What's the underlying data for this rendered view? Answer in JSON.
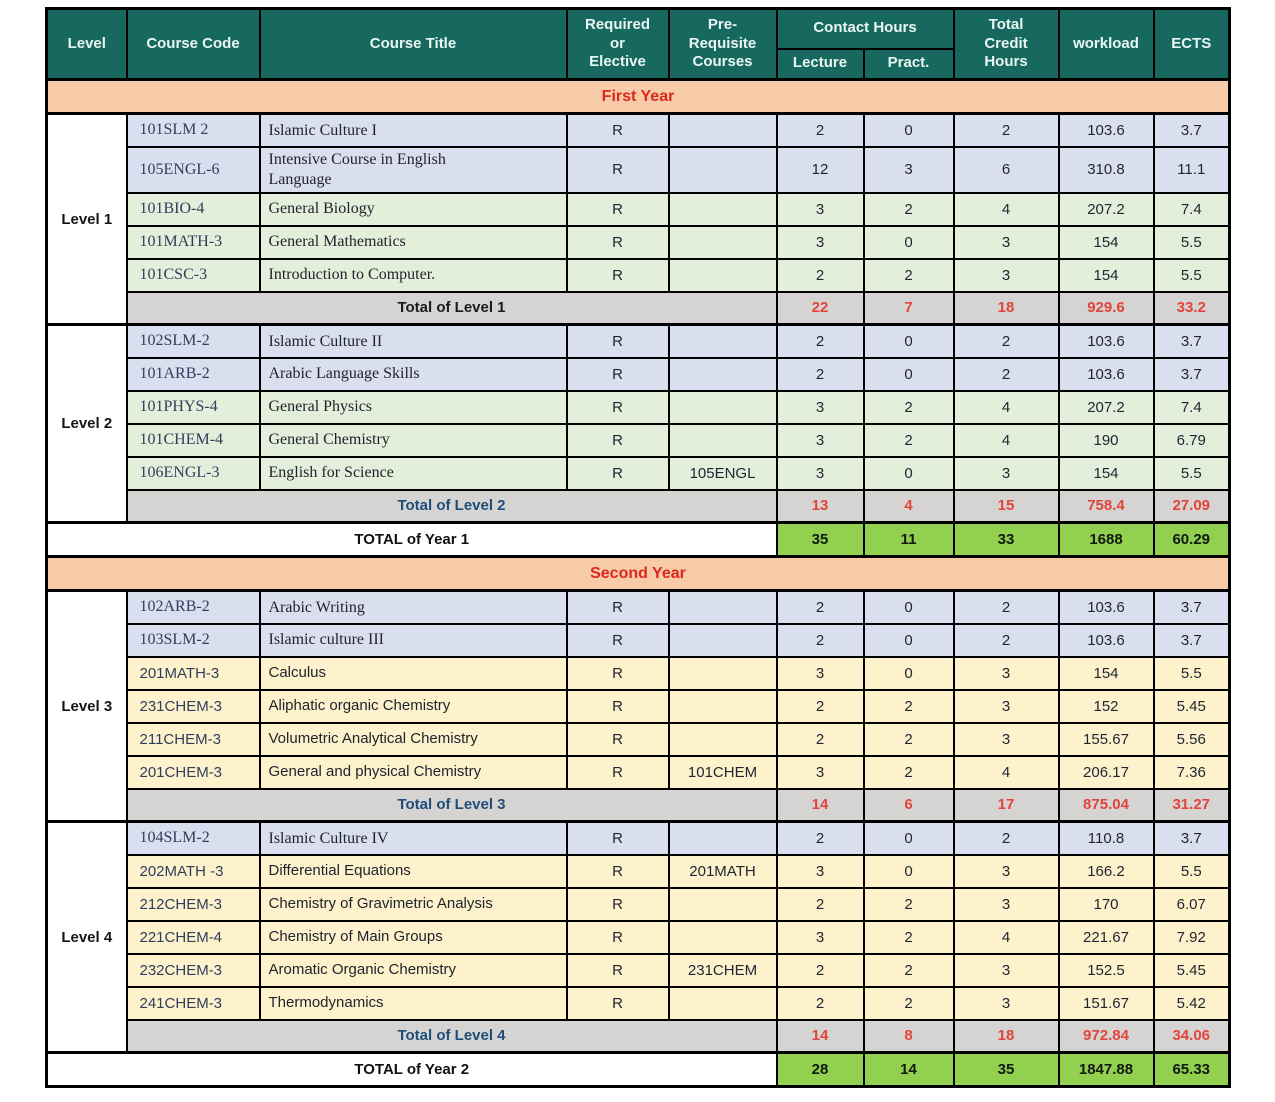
{
  "colors": {
    "header_bg": "#17695F",
    "header_text": "#EAF6F3",
    "banner_bg": "#F7CBA8",
    "banner_text": "#DA291C",
    "row_blue": "#D9DFEE",
    "row_green": "#E3EFDB",
    "row_yellow": "#FDF2CC",
    "total_bg": "#D6D3D3",
    "total_value_red": "#E2443A",
    "year_total_green": "#92D050"
  },
  "table": {
    "columns": {
      "level": "Level",
      "course_code": "Course Code",
      "course_title": "Course Title",
      "required_or_elective": "Required\nor\nElective",
      "pre_requisite": "Pre-\nRequisite\nCourses",
      "contact_hours": "Contact Hours",
      "lecture": "Lecture",
      "pract": "Pract.",
      "total_credit_hours": "Total\nCredit\nHours",
      "workload": "workload",
      "ects": "ECTS"
    },
    "years": [
      {
        "banner": "First Year",
        "levels": [
          {
            "label": "Level 1",
            "courses": [
              {
                "code": "101SLM 2",
                "title": "Islamic Culture I",
                "req": "R",
                "prereq": "",
                "lecture": "2",
                "pract": "0",
                "credit": "2",
                "workload": "103.6",
                "ects": "3.7",
                "tint": "blue",
                "serif": true
              },
              {
                "code": "105ENGL-6",
                "title": "Intensive Course in English\nLanguage",
                "req": "R",
                "prereq": "",
                "lecture": "12",
                "pract": "3",
                "credit": "6",
                "workload": "310.8",
                "ects": "11.1",
                "tint": "blue",
                "serif": true
              },
              {
                "code": "101BIO-4",
                "title": "General Biology",
                "req": "R",
                "prereq": "",
                "lecture": "3",
                "pract": "2",
                "credit": "4",
                "workload": "207.2",
                "ects": "7.4",
                "tint": "green",
                "serif": true
              },
              {
                "code": "101MATH-3",
                "title": "General Mathematics",
                "req": "R",
                "prereq": "",
                "lecture": "3",
                "pract": "0",
                "credit": "3",
                "workload": "154",
                "ects": "5.5",
                "tint": "green",
                "serif": true
              },
              {
                "code": "101CSC-3",
                "title": "Introduction to Computer.",
                "req": "R",
                "prereq": "",
                "lecture": "2",
                "pract": "2",
                "credit": "3",
                "workload": "154",
                "ects": "5.5",
                "tint": "green",
                "serif": true
              }
            ],
            "total": {
              "label": "Total of Level 1",
              "label_color": "#1b1b1b",
              "lecture": "22",
              "pract": "7",
              "credit": "18",
              "workload": "929.6",
              "ects": "33.2"
            }
          },
          {
            "label": "Level 2",
            "courses": [
              {
                "code": "102SLM-2",
                "title": "Islamic Culture II",
                "req": "R",
                "prereq": "",
                "lecture": "2",
                "pract": "0",
                "credit": "2",
                "workload": "103.6",
                "ects": "3.7",
                "tint": "blue",
                "serif": true
              },
              {
                "code": "101ARB-2",
                "title": "Arabic Language Skills",
                "req": "R",
                "prereq": "",
                "lecture": "2",
                "pract": "0",
                "credit": "2",
                "workload": "103.6",
                "ects": "3.7",
                "tint": "blue",
                "serif": true
              },
              {
                "code": "101PHYS-4",
                "title": "General Physics",
                "req": "R",
                "prereq": "",
                "lecture": "3",
                "pract": "2",
                "credit": "4",
                "workload": "207.2",
                "ects": "7.4",
                "tint": "green",
                "serif": true
              },
              {
                "code": "101CHEM-4",
                "title": "General Chemistry",
                "req": "R",
                "prereq": "",
                "lecture": "3",
                "pract": "2",
                "credit": "4",
                "workload": "190",
                "ects": "6.79",
                "tint": "green",
                "serif": true
              },
              {
                "code": "106ENGL-3",
                "title": "English for Science",
                "req": "R",
                "prereq": "105ENGL",
                "lecture": "3",
                "pract": "0",
                "credit": "3",
                "workload": "154",
                "ects": "5.5",
                "tint": "green",
                "serif": true
              }
            ],
            "total": {
              "label": "Total of Level 2",
              "label_color": "#1F4E79",
              "lecture": "13",
              "pract": "4",
              "credit": "15",
              "workload": "758.4",
              "ects": "27.09"
            }
          }
        ],
        "total": {
          "label": "TOTAL of Year 1",
          "lecture": "35",
          "pract": "11",
          "credit": "33",
          "workload": "1688",
          "ects": "60.29"
        }
      },
      {
        "banner": "Second Year",
        "levels": [
          {
            "label": "Level 3",
            "courses": [
              {
                "code": "102ARB-2",
                "title": "Arabic Writing",
                "req": "R",
                "prereq": "",
                "lecture": "2",
                "pract": "0",
                "credit": "2",
                "workload": "103.6",
                "ects": "3.7",
                "tint": "blue",
                "serif": true
              },
              {
                "code": "103SLM-2",
                "title": "Islamic culture III",
                "req": "R",
                "prereq": "",
                "lecture": "2",
                "pract": "0",
                "credit": "2",
                "workload": "103.6",
                "ects": "3.7",
                "tint": "blue",
                "serif": true
              },
              {
                "code": "201MATH-3",
                "title": "Calculus",
                "req": "R",
                "prereq": "",
                "lecture": "3",
                "pract": "0",
                "credit": "3",
                "workload": "154",
                "ects": "5.5",
                "tint": "yellow",
                "serif": false
              },
              {
                "code": "231CHEM-3",
                "title": "Aliphatic organic Chemistry",
                "req": "R",
                "prereq": "",
                "lecture": "2",
                "pract": "2",
                "credit": "3",
                "workload": "152",
                "ects": "5.45",
                "tint": "yellow",
                "serif": false
              },
              {
                "code": "211CHEM-3",
                "title": "Volumetric Analytical Chemistry",
                "req": "R",
                "prereq": "",
                "lecture": "2",
                "pract": "2",
                "credit": "3",
                "workload": "155.67",
                "ects": "5.56",
                "tint": "yellow",
                "serif": false
              },
              {
                "code": "201CHEM-3",
                "title": "General and physical Chemistry",
                "req": "R",
                "prereq": "101CHEM",
                "lecture": "3",
                "pract": "2",
                "credit": "4",
                "workload": "206.17",
                "ects": "7.36",
                "tint": "yellow",
                "serif": false
              }
            ],
            "total": {
              "label": "Total of Level 3",
              "label_color": "#1F4E79",
              "lecture": "14",
              "pract": "6",
              "credit": "17",
              "workload": "875.04",
              "ects": "31.27"
            }
          },
          {
            "label": "Level 4",
            "courses": [
              {
                "code": "104SLM-2",
                "title": "Islamic Culture IV",
                "req": "R",
                "prereq": "",
                "lecture": "2",
                "pract": "0",
                "credit": "2",
                "workload": "110.8",
                "ects": "3.7",
                "tint": "blue",
                "serif": true
              },
              {
                "code": "202MATH -3",
                "title": "Differential Equations",
                "req": "R",
                "prereq": "201MATH",
                "lecture": "3",
                "pract": "0",
                "credit": "3",
                "workload": "166.2",
                "ects": "5.5",
                "tint": "yellow",
                "serif": false
              },
              {
                "code": "212CHEM-3",
                "title": "Chemistry of Gravimetric Analysis",
                "req": "R",
                "prereq": "",
                "lecture": "2",
                "pract": "2",
                "credit": "3",
                "workload": "170",
                "ects": "6.07",
                "tint": "yellow",
                "serif": false
              },
              {
                "code": "221CHEM-4",
                "title": "Chemistry of Main Groups",
                "req": "R",
                "prereq": "",
                "lecture": "3",
                "pract": "2",
                "credit": "4",
                "workload": "221.67",
                "ects": "7.92",
                "tint": "yellow",
                "serif": false
              },
              {
                "code": "232CHEM-3",
                "title": "Aromatic Organic Chemistry",
                "req": "R",
                "prereq": "231CHEM",
                "lecture": "2",
                "pract": "2",
                "credit": "3",
                "workload": "152.5",
                "ects": "5.45",
                "tint": "yellow",
                "serif": false
              },
              {
                "code": "241CHEM-3",
                "title": "Thermodynamics",
                "req": "R",
                "prereq": "",
                "lecture": "2",
                "pract": "2",
                "credit": "3",
                "workload": "151.67",
                "ects": "5.42",
                "tint": "yellow",
                "serif": false
              }
            ],
            "total": {
              "label": "Total of Level 4",
              "label_color": "#1F4E79",
              "lecture": "14",
              "pract": "8",
              "credit": "18",
              "workload": "972.84",
              "ects": "34.06"
            }
          }
        ],
        "total": {
          "label": "TOTAL of Year 2",
          "lecture": "28",
          "pract": "14",
          "credit": "35",
          "workload": "1847.88",
          "ects": "65.33"
        }
      }
    ]
  }
}
